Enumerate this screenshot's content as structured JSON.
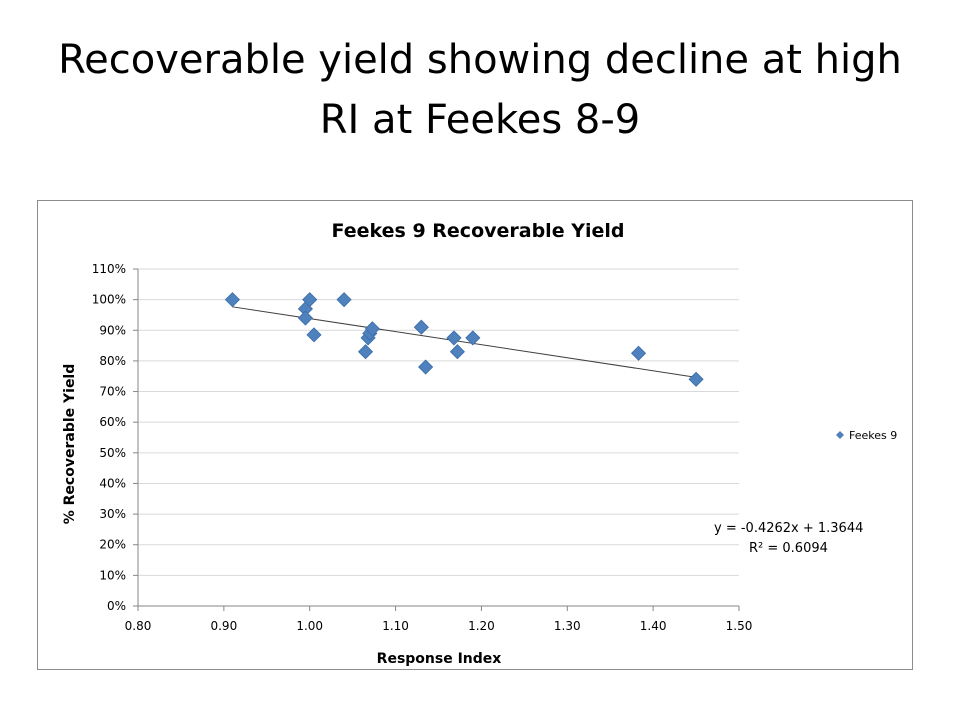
{
  "slide": {
    "title": "Recoverable yield showing decline at high RI at Feekes 8-9"
  },
  "chart_data": {
    "type": "scatter",
    "title": "Feekes 9 Recoverable Yield",
    "xlabel": "Response Index",
    "ylabel": "% Recoverable Yield",
    "xlim": [
      0.8,
      1.5
    ],
    "ylim": [
      0,
      1.1
    ],
    "x_ticks": [
      "0.80",
      "0.90",
      "1.00",
      "1.10",
      "1.20",
      "1.30",
      "1.40",
      "1.50"
    ],
    "y_ticks": [
      "0%",
      "10%",
      "20%",
      "30%",
      "40%",
      "50%",
      "60%",
      "70%",
      "80%",
      "90%",
      "100%",
      "110%"
    ],
    "grid": "horizontal",
    "legend_position": "right",
    "marker_color": "#4f81bd",
    "trend_color": "#404040",
    "series": [
      {
        "name": "Feekes 9",
        "points": [
          {
            "x": 0.91,
            "y": 1.0
          },
          {
            "x": 0.995,
            "y": 0.97
          },
          {
            "x": 0.995,
            "y": 0.94
          },
          {
            "x": 1.0,
            "y": 1.0
          },
          {
            "x": 1.005,
            "y": 0.885
          },
          {
            "x": 1.04,
            "y": 1.0
          },
          {
            "x": 1.065,
            "y": 0.83
          },
          {
            "x": 1.068,
            "y": 0.875
          },
          {
            "x": 1.07,
            "y": 0.89
          },
          {
            "x": 1.073,
            "y": 0.905
          },
          {
            "x": 1.13,
            "y": 0.91
          },
          {
            "x": 1.135,
            "y": 0.78
          },
          {
            "x": 1.168,
            "y": 0.875
          },
          {
            "x": 1.172,
            "y": 0.83
          },
          {
            "x": 1.19,
            "y": 0.875
          },
          {
            "x": 1.383,
            "y": 0.825
          },
          {
            "x": 1.45,
            "y": 0.74
          }
        ]
      }
    ],
    "trendline": {
      "type": "linear",
      "slope": -0.4262,
      "intercept": 1.3644,
      "x_range": [
        0.91,
        1.45
      ],
      "equation": "y = -0.4262x + 1.3644",
      "r_squared": "R² = 0.6094"
    }
  }
}
